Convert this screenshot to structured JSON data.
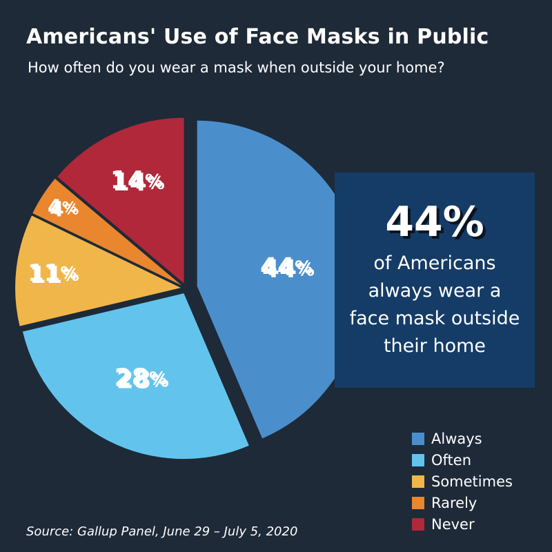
{
  "title": "Americans' Use of Face Masks in Public",
  "subtitle": "How often do you wear a mask when outside your home?",
  "callout": {
    "value": "44%",
    "text": "of Americans always wear a face mask outside their home"
  },
  "source": "Source: Gallup Panel, June 29 – July 5, 2020",
  "chart_data": {
    "type": "pie",
    "title": "Americans' Use of Face Masks in Public",
    "subtitle": "How often do you wear a mask when outside your home?",
    "legend_position": "bottom-right",
    "categories": [
      "Always",
      "Often",
      "Sometimes",
      "Rarely",
      "Never"
    ],
    "values": [
      44,
      28,
      11,
      4,
      14
    ],
    "labels": [
      "44%",
      "28%",
      "11%",
      "4%",
      "14%"
    ],
    "colors": [
      "#4a8fcc",
      "#62c4ec",
      "#f0b64a",
      "#e9862e",
      "#b0283a"
    ]
  }
}
